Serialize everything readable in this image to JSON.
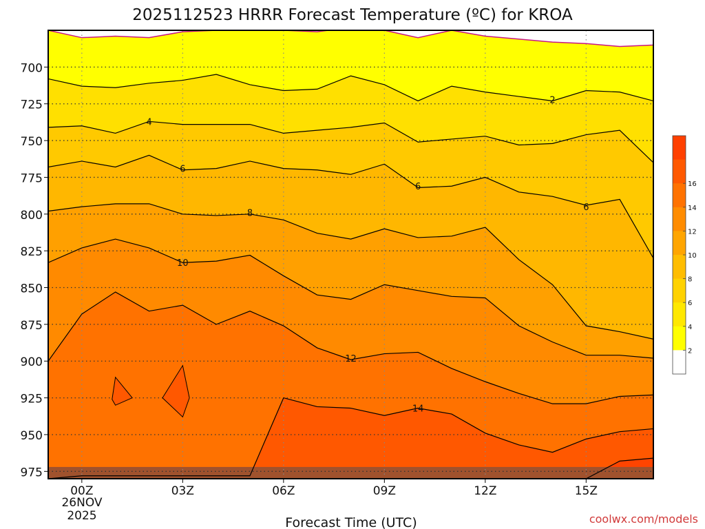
{
  "chart_data": {
    "type": "contour",
    "title": "2025112523 HRRR Forecast Temperature (ºC) for KROA",
    "xlabel": "Forecast Time (UTC)",
    "ylabel": "",
    "x_ticks": [
      "00Z",
      "03Z",
      "06Z",
      "09Z",
      "12Z",
      "15Z"
    ],
    "x_tick_hours": [
      0,
      3,
      6,
      9,
      12,
      15
    ],
    "x_date_line1": "26NOV",
    "x_date_line2": "2025",
    "xlim": [
      -1,
      17
    ],
    "y_ticks": [
      700,
      725,
      750,
      775,
      800,
      825,
      850,
      875,
      900,
      925,
      950,
      975
    ],
    "ylim_top_bottom": [
      675,
      980
    ],
    "surface_pressure_mb": 972,
    "hours": [
      -1,
      0,
      1,
      2,
      3,
      4,
      5,
      6,
      7,
      8,
      9,
      10,
      11,
      12,
      13,
      14,
      15,
      16,
      17
    ],
    "contour_levels": [
      0,
      2,
      4,
      6,
      8,
      10,
      12,
      14,
      16
    ],
    "contours": [
      {
        "level": 0,
        "pressure": [
          675,
          680,
          679,
          680,
          676,
          675,
          675,
          675,
          676,
          673,
          675,
          680,
          675,
          679,
          681,
          683,
          684,
          686,
          685
        ]
      },
      {
        "level": 2,
        "pressure": [
          708,
          713,
          714,
          711,
          709,
          705,
          712,
          716,
          715,
          706,
          712,
          723,
          713,
          717,
          720,
          723,
          716,
          717,
          723
        ]
      },
      {
        "level": 4,
        "pressure": [
          741,
          740,
          745,
          737,
          739,
          739,
          739,
          745,
          743,
          741,
          738,
          751,
          749,
          747,
          753,
          752,
          746,
          743,
          765
        ]
      },
      {
        "level": 6,
        "pressure": [
          768,
          764,
          768,
          760,
          770,
          769,
          764,
          769,
          770,
          773,
          766,
          782,
          781,
          775,
          785,
          788,
          794,
          790,
          830
        ]
      },
      {
        "level": 8,
        "pressure": [
          798,
          795,
          793,
          793,
          800,
          801,
          800,
          804,
          813,
          817,
          810,
          816,
          815,
          809,
          831,
          848,
          876,
          880,
          885
        ]
      },
      {
        "level": 10,
        "pressure": [
          833,
          823,
          817,
          823,
          833,
          832,
          828,
          842,
          855,
          858,
          848,
          852,
          856,
          857,
          876,
          887,
          896,
          896,
          898
        ]
      },
      {
        "level": 12,
        "pressure": [
          900,
          868,
          853,
          866,
          862,
          875,
          866,
          876,
          891,
          899,
          895,
          894,
          905,
          914,
          922,
          929,
          929,
          924,
          923
        ]
      },
      {
        "level": 14,
        "pressure": [
          980,
          978,
          978,
          978,
          978,
          978,
          978,
          925,
          931,
          932,
          937,
          932,
          936,
          949,
          957,
          962,
          953,
          948,
          946
        ]
      },
      {
        "level": 16,
        "pressure": [
          980,
          980,
          980,
          980,
          980,
          980,
          980,
          980,
          980,
          980,
          980,
          980,
          980,
          980,
          980,
          980,
          980,
          968,
          966
        ]
      }
    ],
    "contour_labels": [
      {
        "text": "2",
        "hour": 14.0,
        "pressure": 722
      },
      {
        "text": "4",
        "hour": 2.0,
        "pressure": 737
      },
      {
        "text": "6",
        "hour": 3.0,
        "pressure": 769
      },
      {
        "text": "6",
        "hour": 10.0,
        "pressure": 781
      },
      {
        "text": "6",
        "hour": 15.0,
        "pressure": 795
      },
      {
        "text": "8",
        "hour": 5.0,
        "pressure": 799
      },
      {
        "text": "10",
        "hour": 3.0,
        "pressure": 833
      },
      {
        "text": "12",
        "hour": 8.0,
        "pressure": 898
      },
      {
        "text": "14",
        "hour": 10.0,
        "pressure": 932
      }
    ],
    "closed_contours": [
      {
        "level": 14,
        "points": [
          [
            1.0,
            911
          ],
          [
            1.5,
            925
          ],
          [
            1.0,
            930
          ],
          [
            0.9,
            926
          ]
        ]
      },
      {
        "level": 14,
        "points": [
          [
            3.0,
            903
          ],
          [
            3.2,
            925
          ],
          [
            3.0,
            938
          ],
          [
            2.4,
            925
          ]
        ]
      }
    ],
    "colorbar": {
      "labels": [
        "2",
        "4",
        "6",
        "8",
        "10",
        "12",
        "14",
        "16"
      ],
      "colors": [
        "#ffffff",
        "#ffff00",
        "#ffe800",
        "#ffd200",
        "#ffbd00",
        "#ffa500",
        "#ff8c00",
        "#ff7200",
        "#ff5900",
        "#ff4000"
      ]
    },
    "band_colors": [
      "#ffffff",
      "#ffff00",
      "#ffe000",
      "#ffc900",
      "#ffb700",
      "#ffa000",
      "#ff8a00",
      "#ff7200",
      "#ff5800",
      "#ff4400"
    ],
    "ground_color": "#a0522d",
    "freezing_line_color": "#c71585"
  },
  "watermark": "coolwx.com/models"
}
